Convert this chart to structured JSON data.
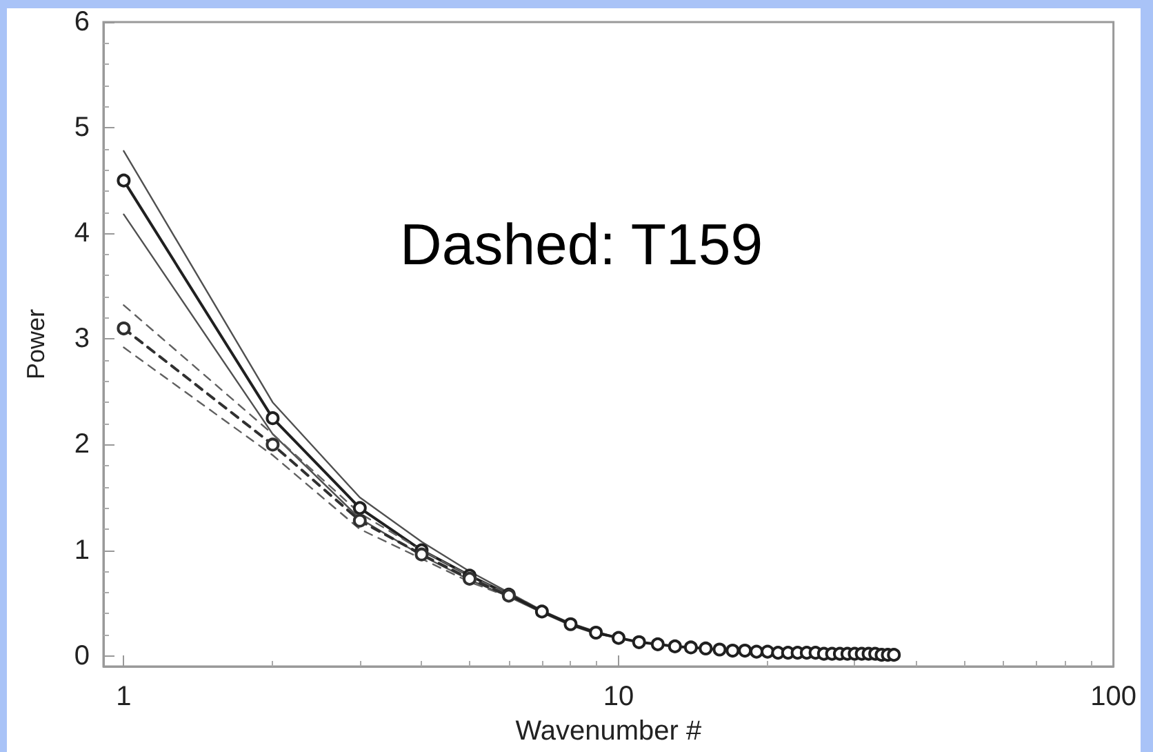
{
  "chart_data": {
    "type": "line",
    "xlabel": "Wavenumber #",
    "ylabel": "Power",
    "annotations": [
      "Dashed: T159"
    ],
    "x": [
      1,
      2,
      3,
      4,
      5,
      6,
      7,
      8,
      9,
      10,
      11,
      12,
      13,
      14,
      15,
      16,
      17,
      18,
      19,
      20,
      21,
      22,
      23,
      24,
      25,
      26,
      27,
      28,
      29,
      30,
      31,
      32,
      33,
      34,
      35,
      36
    ],
    "log": "x",
    "xlim": [
      0.91,
      100
    ],
    "xticks": [
      1,
      10,
      100
    ],
    "ylim": [
      -0.1,
      6
    ],
    "yticks": [
      0,
      1,
      2,
      3,
      4,
      5,
      6
    ],
    "grid": false,
    "series": [
      {
        "color": "#505050",
        "line_style": "solid",
        "marker": "none",
        "values": [
          4.78,
          2.4,
          1.5,
          1.08,
          0.8,
          0.6,
          0.43,
          0.31,
          0.23,
          0.17,
          0.13,
          0.11,
          0.09,
          0.08,
          0.07,
          0.06,
          0.05,
          0.05,
          0.04,
          0.04,
          0.03,
          0.03,
          0.03,
          0.03,
          0.03,
          0.02,
          0.02,
          0.02,
          0.02,
          0.02,
          0.02,
          0.02,
          0.02,
          0.01,
          0.01,
          0.01
        ]
      },
      {
        "color": "#505050",
        "line_style": "solid",
        "marker": "none",
        "values": [
          4.18,
          2.1,
          1.3,
          0.95,
          0.72,
          0.56,
          0.41,
          0.29,
          0.21,
          0.17,
          0.13,
          0.11,
          0.09,
          0.08,
          0.07,
          0.06,
          0.05,
          0.05,
          0.04,
          0.04,
          0.03,
          0.03,
          0.03,
          0.03,
          0.03,
          0.02,
          0.02,
          0.02,
          0.02,
          0.02,
          0.02,
          0.02,
          0.02,
          0.01,
          0.01,
          0.01
        ]
      },
      {
        "color": "#202020",
        "line_style": "solid",
        "marker": "circle",
        "values": [
          4.5,
          2.25,
          1.4,
          1.0,
          0.76,
          0.58,
          0.42,
          0.3,
          0.22,
          0.17,
          0.13,
          0.11,
          0.09,
          0.08,
          0.07,
          0.06,
          0.05,
          0.05,
          0.04,
          0.04,
          0.03,
          0.03,
          0.03,
          0.03,
          0.03,
          0.02,
          0.02,
          0.02,
          0.02,
          0.02,
          0.02,
          0.02,
          0.02,
          0.01,
          0.01,
          0.01
        ]
      },
      {
        "color": "#606060",
        "line_style": "dashed",
        "marker": "none",
        "x": [
          1,
          2,
          3,
          4,
          5,
          6
        ],
        "values": [
          3.32,
          2.1,
          1.35,
          1.0,
          0.76,
          0.58
        ]
      },
      {
        "color": "#606060",
        "line_style": "dashed",
        "marker": "none",
        "x": [
          1,
          2,
          3,
          4,
          5,
          6
        ],
        "values": [
          2.92,
          1.9,
          1.2,
          0.92,
          0.7,
          0.56
        ]
      },
      {
        "color": "#303030",
        "line_style": "dashed",
        "marker": "circle",
        "x": [
          1,
          2,
          3,
          4,
          5,
          6
        ],
        "values": [
          3.1,
          2.0,
          1.28,
          0.96,
          0.73,
          0.57
        ]
      }
    ]
  }
}
